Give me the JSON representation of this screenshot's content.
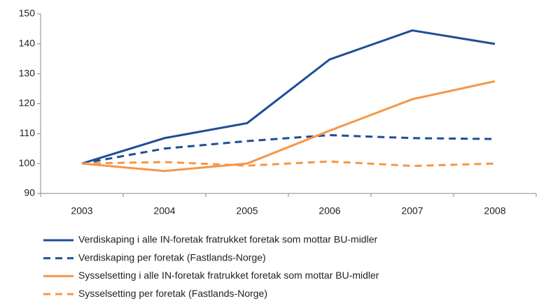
{
  "chart_data": {
    "type": "line",
    "categories": [
      "2003",
      "2004",
      "2005",
      "2006",
      "2007",
      "2008"
    ],
    "series": [
      {
        "name": "Verdiskaping i alle IN-foretak fratrukket foretak som mottar BU-midler",
        "color": "#1f4e96",
        "dash": false,
        "values": [
          100,
          108.5,
          113.5,
          134.8,
          144.5,
          140
        ]
      },
      {
        "name": "Verdiskaping per foretak (Fastlands-Norge)",
        "color": "#1f4e96",
        "dash": true,
        "values": [
          100,
          105,
          107.5,
          109.5,
          108.5,
          108.2
        ]
      },
      {
        "name": "Sysselsetting i alle IN-foretak fratrukket foretak som mottar BU-midler",
        "color": "#f79646",
        "dash": false,
        "values": [
          100,
          97.5,
          100,
          111,
          121.5,
          127.5
        ]
      },
      {
        "name": "Sysselsetting per foretak (Fastlands-Norge)",
        "color": "#f79646",
        "dash": true,
        "values": [
          100,
          100.5,
          99.3,
          100.7,
          99.2,
          100
        ]
      }
    ],
    "ylim": [
      90,
      150
    ],
    "yticks": [
      90,
      100,
      110,
      120,
      130,
      140,
      150
    ],
    "grid": false,
    "legend": "bottom"
  }
}
